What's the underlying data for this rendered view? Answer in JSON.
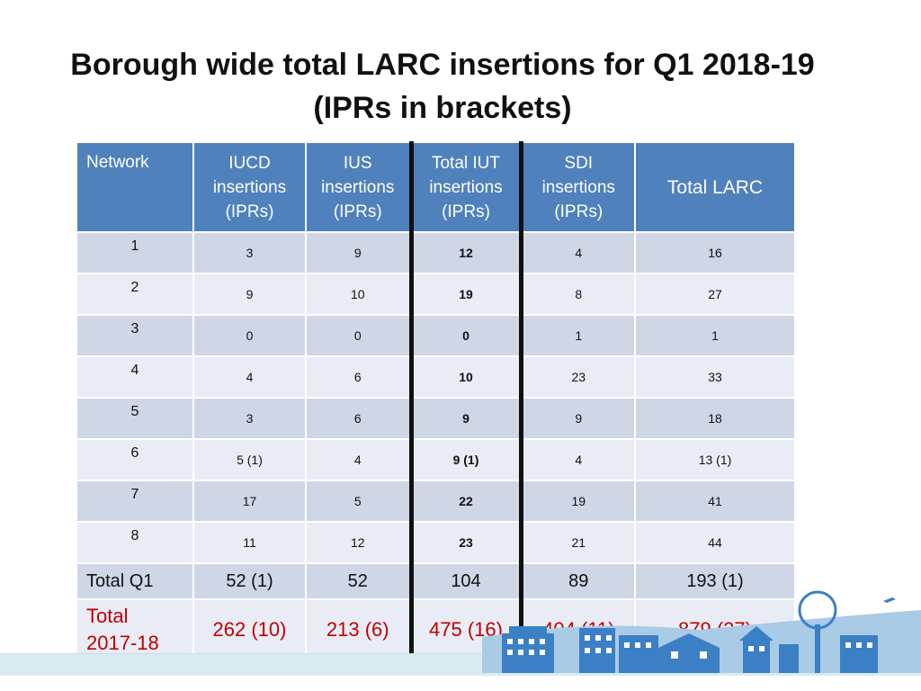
{
  "title_line1": "Borough wide total LARC insertions for Q1 2018-19",
  "title_line2": "(IPRs in brackets)",
  "headers": {
    "network": "Network",
    "iucd": [
      "IUCD",
      "insertions",
      "(IPRs)"
    ],
    "ius": [
      "IUS",
      "insertions",
      "(IPRs)"
    ],
    "iut": [
      "Total IUT",
      "insertions",
      "(IPRs)"
    ],
    "sdi": [
      "SDI",
      "insertions",
      "(IPRs)"
    ],
    "total_larc": "Total LARC"
  },
  "rows": [
    {
      "network": "1",
      "iucd": "3",
      "ius": "9",
      "iut": "12",
      "sdi": "4",
      "total": "16"
    },
    {
      "network": "2",
      "iucd": "9",
      "ius": "10",
      "iut": "19",
      "sdi": "8",
      "total": "27"
    },
    {
      "network": "3",
      "iucd": "0",
      "ius": "0",
      "iut": "0",
      "sdi": "1",
      "total": "1"
    },
    {
      "network": "4",
      "iucd": "4",
      "ius": "6",
      "iut": "10",
      "sdi": "23",
      "total": "33"
    },
    {
      "network": "5",
      "iucd": "3",
      "ius": "6",
      "iut": "9",
      "sdi": "9",
      "total": "18"
    },
    {
      "network": "6",
      "iucd": "5 (1)",
      "ius": "4",
      "iut": "9 (1)",
      "sdi": "4",
      "total": "13 (1)"
    },
    {
      "network": "7",
      "iucd": "17",
      "ius": "5",
      "iut": "22",
      "sdi": "19",
      "total": "41"
    },
    {
      "network": "8",
      "iucd": "11",
      "ius": "12",
      "iut": "23",
      "sdi": "21",
      "total": "44"
    }
  ],
  "total_q1": {
    "label": "Total Q1",
    "iucd": "52 (1)",
    "ius": "52",
    "iut": "104",
    "sdi": "89",
    "total": "193 (1)"
  },
  "total_1718": {
    "label_line1": "Total",
    "label_line2": "2017-18",
    "iucd": "262 (10)",
    "ius": "213 (6)",
    "iut": "475 (16)",
    "sdi": "404 (11)",
    "total": "879 (27)"
  },
  "colors": {
    "header_blue": "#4f81bd",
    "row_dark": "#cfd6e6",
    "row_light": "#e9ecf4",
    "total_red": "#c00000",
    "skyline_blue": "#3b7fc4"
  }
}
